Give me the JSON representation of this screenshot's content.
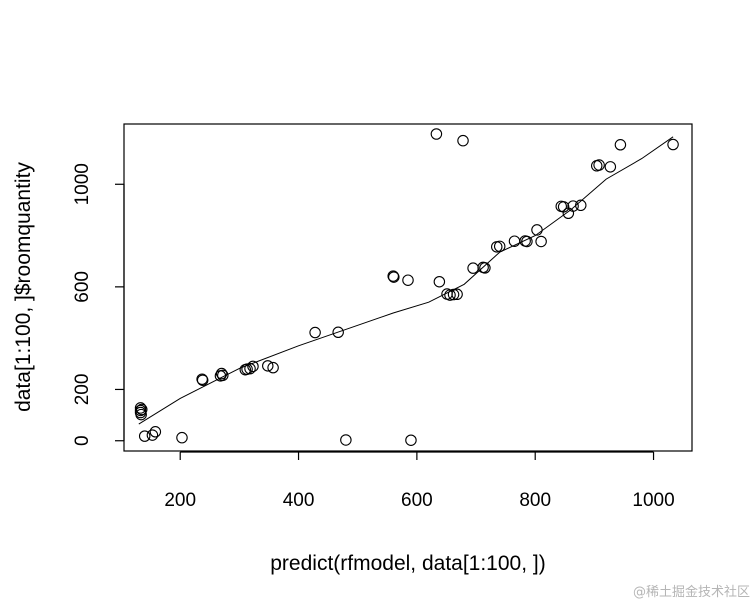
{
  "chart_data": {
    "type": "scatter",
    "title": "",
    "xlabel": "predict(rfmodel, data[1:100, ])",
    "ylabel": "data[1:100, ]$roomquantity",
    "xlim": [
      105,
      1065
    ],
    "ylim": [
      -40,
      1235
    ],
    "xticks": [
      200,
      400,
      600,
      800,
      1000
    ],
    "yticks": [
      0,
      200,
      600,
      1000
    ],
    "x_tick_labels": [
      "200",
      "400",
      "600",
      "800",
      "1000"
    ],
    "y_tick_labels": [
      "0",
      "200",
      "600",
      "1000"
    ],
    "grid": false,
    "legend": "none",
    "point_style": "open-circle",
    "colors": {
      "points": "#000000",
      "line": "#000000",
      "frame": "#000000"
    },
    "points": [
      {
        "x": 133,
        "y": 128
      },
      {
        "x": 133,
        "y": 118
      },
      {
        "x": 133,
        "y": 110
      },
      {
        "x": 134,
        "y": 102
      },
      {
        "x": 135,
        "y": 122
      },
      {
        "x": 140,
        "y": 18
      },
      {
        "x": 153,
        "y": 22
      },
      {
        "x": 158,
        "y": 35
      },
      {
        "x": 203,
        "y": 12
      },
      {
        "x": 237,
        "y": 240
      },
      {
        "x": 238,
        "y": 236
      },
      {
        "x": 268,
        "y": 253
      },
      {
        "x": 270,
        "y": 262
      },
      {
        "x": 272,
        "y": 255
      },
      {
        "x": 310,
        "y": 277
      },
      {
        "x": 313,
        "y": 279
      },
      {
        "x": 318,
        "y": 281
      },
      {
        "x": 323,
        "y": 290
      },
      {
        "x": 348,
        "y": 292
      },
      {
        "x": 357,
        "y": 285
      },
      {
        "x": 428,
        "y": 422
      },
      {
        "x": 467,
        "y": 423
      },
      {
        "x": 480,
        "y": 3
      },
      {
        "x": 560,
        "y": 642
      },
      {
        "x": 561,
        "y": 638
      },
      {
        "x": 585,
        "y": 626
      },
      {
        "x": 590,
        "y": 2
      },
      {
        "x": 633,
        "y": 1196
      },
      {
        "x": 638,
        "y": 620
      },
      {
        "x": 651,
        "y": 572
      },
      {
        "x": 656,
        "y": 568
      },
      {
        "x": 662,
        "y": 570
      },
      {
        "x": 668,
        "y": 571
      },
      {
        "x": 678,
        "y": 1170
      },
      {
        "x": 695,
        "y": 673
      },
      {
        "x": 712,
        "y": 676
      },
      {
        "x": 715,
        "y": 674
      },
      {
        "x": 735,
        "y": 756
      },
      {
        "x": 740,
        "y": 758
      },
      {
        "x": 765,
        "y": 778
      },
      {
        "x": 783,
        "y": 779
      },
      {
        "x": 786,
        "y": 777
      },
      {
        "x": 803,
        "y": 822
      },
      {
        "x": 810,
        "y": 777
      },
      {
        "x": 844,
        "y": 914
      },
      {
        "x": 848,
        "y": 912
      },
      {
        "x": 856,
        "y": 887
      },
      {
        "x": 864,
        "y": 915
      },
      {
        "x": 877,
        "y": 918
      },
      {
        "x": 904,
        "y": 1072
      },
      {
        "x": 908,
        "y": 1075
      },
      {
        "x": 927,
        "y": 1068
      },
      {
        "x": 944,
        "y": 1154
      },
      {
        "x": 1033,
        "y": 1155
      }
    ],
    "smooth_line": [
      {
        "x": 130,
        "y": 65
      },
      {
        "x": 200,
        "y": 165
      },
      {
        "x": 300,
        "y": 282
      },
      {
        "x": 400,
        "y": 370
      },
      {
        "x": 500,
        "y": 450
      },
      {
        "x": 560,
        "y": 498
      },
      {
        "x": 620,
        "y": 540
      },
      {
        "x": 680,
        "y": 610
      },
      {
        "x": 740,
        "y": 735
      },
      {
        "x": 800,
        "y": 800
      },
      {
        "x": 860,
        "y": 900
      },
      {
        "x": 920,
        "y": 1020
      },
      {
        "x": 980,
        "y": 1100
      },
      {
        "x": 1033,
        "y": 1185
      }
    ]
  }
}
